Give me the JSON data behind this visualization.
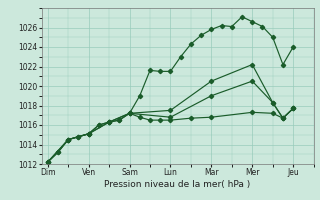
{
  "background_color": "#cce8dc",
  "grid_color": "#99ccbb",
  "line_color": "#1a5c2a",
  "xlabel": "Pression niveau de la mer( hPa )",
  "ylim": [
    1012,
    1028
  ],
  "yticks": [
    1012,
    1014,
    1016,
    1018,
    1020,
    1022,
    1024,
    1026
  ],
  "day_labels": [
    "Dim",
    "Ven",
    "Sam",
    "Lun",
    "Mar",
    "Mer",
    "Jeu"
  ],
  "day_positions": [
    0,
    2,
    4,
    6,
    8,
    10,
    12
  ],
  "series": [
    {
      "x": [
        0,
        0.5,
        1,
        1.5,
        2,
        2.5,
        3,
        3.5,
        4,
        4.5,
        5,
        5.5,
        6,
        6.5,
        7,
        7.5,
        8,
        8.5,
        9,
        9.5,
        10,
        10.5,
        11,
        11.5,
        12
      ],
      "y": [
        1012.2,
        1013.2,
        1014.5,
        1014.8,
        1015.1,
        1016.0,
        1016.3,
        1016.5,
        1017.2,
        1019.0,
        1021.6,
        1021.5,
        1021.5,
        1023.0,
        1024.3,
        1025.2,
        1025.8,
        1026.2,
        1026.1,
        1027.1,
        1026.6,
        1026.1,
        1025.0,
        1022.2,
        1024.0
      ]
    },
    {
      "x": [
        0,
        0.5,
        1,
        1.5,
        2,
        2.5,
        3,
        3.5,
        4,
        4.5,
        5,
        5.5,
        6,
        7,
        8,
        10,
        11,
        11.5,
        12
      ],
      "y": [
        1012.2,
        1013.2,
        1014.5,
        1014.8,
        1015.1,
        1016.0,
        1016.3,
        1016.5,
        1017.2,
        1016.8,
        1016.5,
        1016.5,
        1016.5,
        1016.7,
        1016.8,
        1017.3,
        1017.2,
        1016.7,
        1017.7
      ]
    },
    {
      "x": [
        0,
        1,
        2,
        3,
        4,
        6,
        8,
        10,
        11,
        11.5,
        12
      ],
      "y": [
        1012.2,
        1014.5,
        1015.1,
        1016.3,
        1017.2,
        1016.8,
        1019.0,
        1020.5,
        1018.3,
        1016.7,
        1017.7
      ]
    },
    {
      "x": [
        0,
        1,
        2,
        3,
        4,
        6,
        8,
        10,
        11,
        11.5,
        12
      ],
      "y": [
        1012.2,
        1014.5,
        1015.1,
        1016.3,
        1017.2,
        1017.5,
        1020.5,
        1022.2,
        1018.3,
        1016.7,
        1017.7
      ]
    }
  ]
}
